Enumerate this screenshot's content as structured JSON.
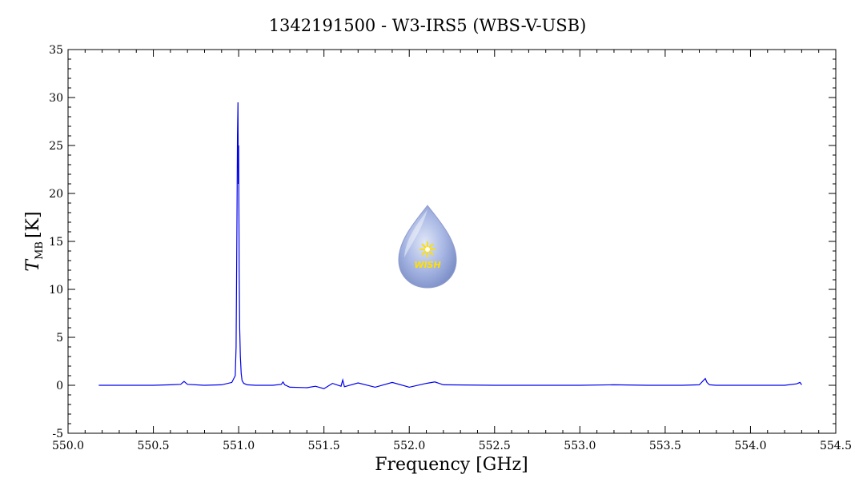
{
  "chart_data": {
    "type": "line",
    "title": "1342191500 - W3-IRS5 (WBS-V-USB)",
    "xlabel": "Frequency [GHz]",
    "ylabel_main": "T",
    "ylabel_sub": "MB",
    "ylabel_unit": "[K]",
    "xlim": [
      550.0,
      554.5
    ],
    "ylim": [
      -5,
      35
    ],
    "x_ticks": [
      550.0,
      550.5,
      551.0,
      551.5,
      552.0,
      552.5,
      553.0,
      553.5,
      554.0,
      554.5
    ],
    "x_tick_labels": [
      "550.0",
      "550.5",
      "551.0",
      "551.5",
      "552.0",
      "552.5",
      "553.0",
      "553.5",
      "554.0",
      "554.5"
    ],
    "y_ticks": [
      -5,
      0,
      5,
      10,
      15,
      20,
      25,
      30,
      35
    ],
    "y_tick_labels": [
      "-5",
      "0",
      "5",
      "10",
      "15",
      "20",
      "25",
      "30",
      "35"
    ],
    "grid": false,
    "series": [
      {
        "color": "#0000ee",
        "x": [
          550.18,
          550.4,
          550.5,
          550.6,
          550.66,
          550.68,
          550.7,
          550.8,
          550.9,
          550.96,
          550.98,
          550.985,
          550.99,
          550.993,
          550.996,
          550.998,
          551.0,
          551.003,
          551.006,
          551.01,
          551.015,
          551.02,
          551.03,
          551.05,
          551.1,
          551.2,
          551.25,
          551.26,
          551.27,
          551.3,
          551.4,
          551.45,
          551.5,
          551.55,
          551.6,
          551.61,
          551.62,
          551.7,
          551.8,
          551.9,
          552.0,
          552.1,
          552.15,
          552.2,
          552.5,
          553.0,
          553.2,
          553.4,
          553.6,
          553.7,
          553.735,
          553.745,
          553.76,
          553.8,
          554.0,
          554.2,
          554.27,
          554.29,
          554.3
        ],
        "y": [
          0.0,
          0.0,
          0.0,
          0.05,
          0.1,
          0.4,
          0.1,
          0.0,
          0.05,
          0.3,
          1.0,
          4.0,
          17.0,
          26.0,
          29.5,
          21.0,
          25.0,
          12.0,
          6.0,
          3.0,
          1.2,
          0.5,
          0.2,
          0.05,
          0.0,
          0.0,
          0.1,
          0.35,
          0.05,
          -0.2,
          -0.25,
          -0.1,
          -0.35,
          0.2,
          -0.1,
          0.55,
          -0.15,
          0.25,
          -0.2,
          0.3,
          -0.2,
          0.2,
          0.35,
          0.05,
          0.0,
          0.0,
          0.05,
          0.0,
          0.0,
          0.05,
          0.7,
          0.3,
          0.05,
          0.0,
          0.0,
          0.0,
          0.15,
          0.3,
          0.05
        ]
      }
    ]
  },
  "logo": {
    "text": "WISH"
  }
}
